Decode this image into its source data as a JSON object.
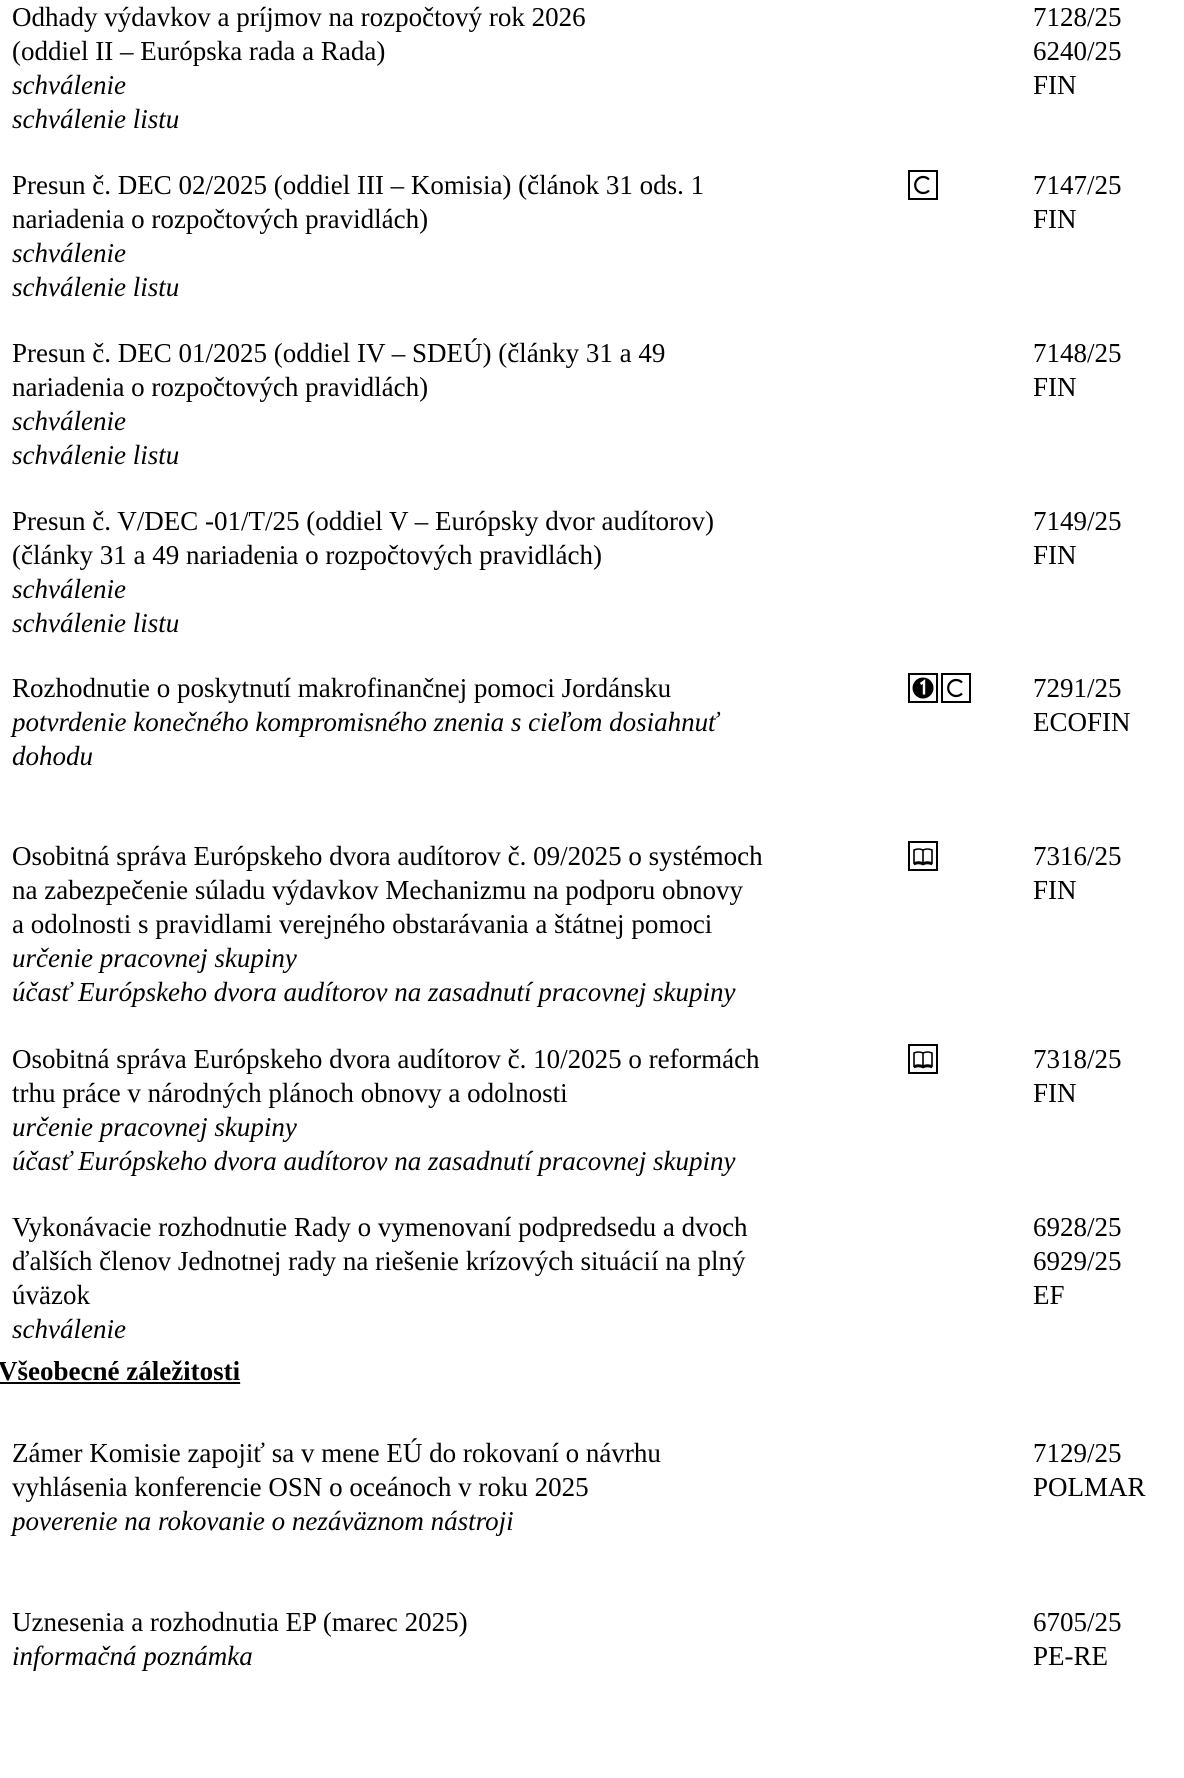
{
  "sections": [
    {
      "heading": "",
      "items": [
        {
          "lines": [
            "Odhady výdavkov a príjmov na rozpočtový rok 2026",
            "(oddiel II – Európska rada a Rada)"
          ],
          "notes": [
            "schválenie",
            "schválenie listu"
          ],
          "icons": [],
          "refs": [
            "7128/25",
            "6240/25",
            "FIN"
          ]
        },
        {
          "lines": [
            "Presun č. DEC 02/2025 (oddiel III – Komisia) (článok 31 ods. 1",
            "nariadenia o rozpočtových pravidlách)"
          ],
          "notes": [
            "schválenie",
            "schválenie listu"
          ],
          "icons": [
            "c-box-icon"
          ],
          "refs": [
            "7147/25",
            "FIN"
          ]
        },
        {
          "lines": [
            "Presun č. DEC 01/2025 (oddiel IV – SDEÚ) (články 31 a 49",
            "nariadenia o rozpočtových pravidlách)"
          ],
          "notes": [
            "schválenie",
            "schválenie listu"
          ],
          "icons": [],
          "refs": [
            "7148/25",
            "FIN"
          ]
        },
        {
          "lines": [
            "Presun č. V/DEC -01/T/25 (oddiel V – Európsky dvor audítorov)",
            "(články 31 a 49 nariadenia o rozpočtových pravidlách)"
          ],
          "notes": [
            "schválenie",
            "schválenie listu"
          ],
          "icons": [],
          "refs": [
            "7149/25",
            "FIN"
          ]
        },
        {
          "lines": [
            "Rozhodnutie o poskytnutí makrofinančnej pomoci Jordánsku"
          ],
          "notes": [
            "potvrdenie konečného kompromisného znenia s cieľom dosiahnuť",
            "dohodu"
          ],
          "icons": [
            "number-one-box-icon",
            "c-box-icon"
          ],
          "refs": [
            "7291/25",
            "ECOFIN"
          ]
        },
        {
          "lines": [
            "Osobitná správa Európskeho dvora audítorov č. 09/2025 o systémoch",
            "na zabezpečenie súladu výdavkov Mechanizmu na podporu obnovy",
            "a odolnosti s pravidlami verejného obstarávania a štátnej pomoci"
          ],
          "notes": [
            "určenie pracovnej skupiny",
            "účasť Európskeho dvora audítorov na zasadnutí pracovnej skupiny"
          ],
          "icons": [
            "open-book-icon"
          ],
          "refs": [
            "7316/25",
            "FIN"
          ]
        },
        {
          "lines": [
            "Osobitná správa Európskeho dvora audítorov č. 10/2025 o reformách",
            "trhu práce v národných plánoch obnovy a odolnosti"
          ],
          "notes": [
            "určenie pracovnej skupiny",
            "účasť Európskeho dvora audítorov na zasadnutí pracovnej skupiny"
          ],
          "icons": [
            "open-book-icon"
          ],
          "refs": [
            "7318/25",
            "FIN"
          ]
        },
        {
          "lines": [
            "Vykonávacie rozhodnutie Rady o vymenovaní podpredsedu a dvoch",
            "ďalších členov Jednotnej rady na riešenie krízových situácií na plný",
            "úväzok"
          ],
          "notes": [
            "schválenie"
          ],
          "icons": [],
          "refs": [
            "6928/25",
            "6929/25",
            "EF"
          ]
        }
      ]
    },
    {
      "heading": "Všeobecné záležitosti",
      "items": [
        {
          "lines": [
            "Zámer Komisie zapojiť sa v mene EÚ do rokovaní o návrhu",
            "vyhlásenia konferencie OSN o oceánoch v roku 2025"
          ],
          "notes": [
            "poverenie na rokovanie o nezáväznom nástroji"
          ],
          "icons": [],
          "refs": [
            "7129/25",
            "POLMAR"
          ]
        },
        {
          "lines": [
            "Uznesenia a rozhodnutia EP (marec 2025)"
          ],
          "notes": [
            "informačná poznámka"
          ],
          "icons": [],
          "refs": [
            "6705/25",
            "PE-RE"
          ]
        }
      ]
    }
  ]
}
